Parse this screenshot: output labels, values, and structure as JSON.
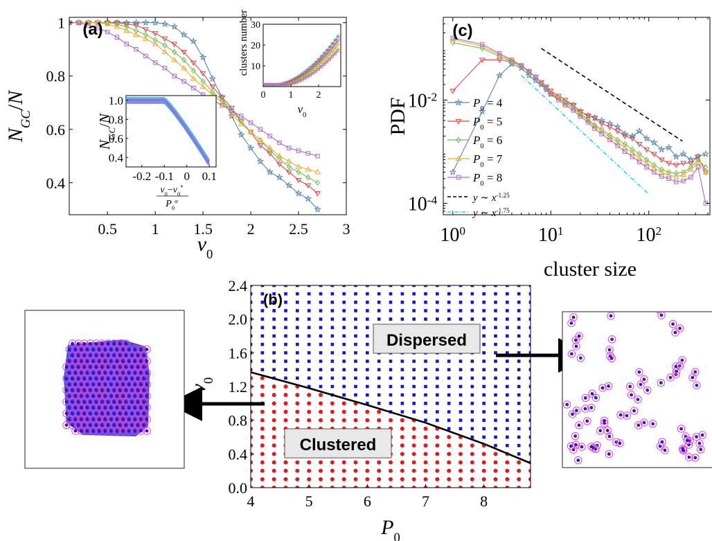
{
  "chart_data": [
    {
      "panel": "(a)",
      "type": "line",
      "xlabel": "v0",
      "ylabel": "NGC/N",
      "xlim": [
        0.1,
        3.0
      ],
      "ylim": [
        0.28,
        1.02
      ],
      "xticks": [
        "0.5",
        "1",
        "1.5",
        "2",
        "2.5",
        "3"
      ],
      "yticks": [
        "0.4",
        "0.6",
        "0.8",
        "1"
      ],
      "series": [
        {
          "name": "P0 = 4",
          "color": "#5a86ad",
          "marker": "star",
          "x": [
            0.1,
            0.2,
            0.3,
            0.4,
            0.5,
            0.6,
            0.7,
            0.8,
            0.9,
            1.0,
            1.1,
            1.2,
            1.3,
            1.4,
            1.5,
            1.6,
            1.7,
            1.8,
            1.9,
            2.0,
            2.1,
            2.2,
            2.3,
            2.4,
            2.5,
            2.6,
            2.7
          ],
          "y": [
            1,
            1,
            1,
            1,
            1,
            1,
            1,
            1,
            1,
            1,
            0.995,
            0.985,
            0.955,
            0.93,
            0.87,
            0.79,
            0.72,
            0.65,
            0.58,
            0.53,
            0.48,
            0.44,
            0.42,
            0.39,
            0.36,
            0.34,
            0.3
          ]
        },
        {
          "name": "P0 = 5",
          "color": "#d94a4a",
          "marker": "triangle-down",
          "x": [
            0.1,
            0.2,
            0.3,
            0.4,
            0.5,
            0.6,
            0.7,
            0.8,
            0.9,
            1.0,
            1.1,
            1.2,
            1.3,
            1.4,
            1.5,
            1.6,
            1.7,
            1.8,
            1.9,
            2.0,
            2.1,
            2.2,
            2.3,
            2.4,
            2.5,
            2.6,
            2.7
          ],
          "y": [
            1,
            1,
            1,
            1,
            1,
            1,
            0.995,
            0.99,
            0.975,
            0.96,
            0.94,
            0.92,
            0.89,
            0.85,
            0.81,
            0.76,
            0.72,
            0.68,
            0.63,
            0.59,
            0.54,
            0.51,
            0.47,
            0.44,
            0.41,
            0.39,
            0.36
          ]
        },
        {
          "name": "P0 = 6",
          "color": "#6cbf4f",
          "marker": "diamond",
          "x": [
            0.1,
            0.2,
            0.3,
            0.4,
            0.5,
            0.6,
            0.7,
            0.8,
            0.9,
            1.0,
            1.1,
            1.2,
            1.3,
            1.4,
            1.5,
            1.6,
            1.7,
            1.8,
            1.9,
            2.0,
            2.1,
            2.2,
            2.3,
            2.4,
            2.5,
            2.6,
            2.7
          ],
          "y": [
            1,
            1,
            1,
            1,
            1,
            0.995,
            0.985,
            0.97,
            0.955,
            0.935,
            0.915,
            0.89,
            0.86,
            0.82,
            0.78,
            0.74,
            0.71,
            0.67,
            0.63,
            0.59,
            0.56,
            0.52,
            0.49,
            0.46,
            0.44,
            0.42,
            0.4
          ]
        },
        {
          "name": "P0 = 7",
          "color": "#f0a830",
          "marker": "triangle-up",
          "x": [
            0.1,
            0.2,
            0.3,
            0.4,
            0.5,
            0.6,
            0.7,
            0.8,
            0.9,
            1.0,
            1.1,
            1.2,
            1.3,
            1.4,
            1.5,
            1.6,
            1.7,
            1.8,
            1.9,
            2.0,
            2.1,
            2.2,
            2.3,
            2.4,
            2.5,
            2.6,
            2.7
          ],
          "y": [
            1,
            1,
            1,
            1,
            0.995,
            0.985,
            0.97,
            0.955,
            0.94,
            0.92,
            0.89,
            0.86,
            0.83,
            0.79,
            0.76,
            0.73,
            0.7,
            0.66,
            0.62,
            0.59,
            0.56,
            0.53,
            0.5,
            0.48,
            0.46,
            0.45,
            0.44
          ]
        },
        {
          "name": "P0 = 8",
          "color": "#a66cc7",
          "marker": "square",
          "x": [
            0.1,
            0.2,
            0.3,
            0.4,
            0.5,
            0.6,
            0.7,
            0.8,
            0.9,
            1.0,
            1.1,
            1.2,
            1.3,
            1.4,
            1.5,
            1.6,
            1.7,
            1.8,
            1.9,
            2.0,
            2.1,
            2.2,
            2.3,
            2.4,
            2.5,
            2.6,
            2.7
          ],
          "y": [
            1,
            1,
            0.99,
            0.98,
            0.965,
            0.945,
            0.92,
            0.9,
            0.875,
            0.85,
            0.83,
            0.8,
            0.78,
            0.755,
            0.73,
            0.71,
            0.69,
            0.67,
            0.65,
            0.625,
            0.6,
            0.575,
            0.55,
            0.53,
            0.52,
            0.51,
            0.5
          ]
        }
      ],
      "insets": [
        {
          "type": "line",
          "xlabel": "v0",
          "ylabel": "clusters number",
          "xlim": [
            0,
            2.8
          ],
          "ylim": [
            0,
            30
          ],
          "xticks": [
            "0",
            "1",
            "2"
          ],
          "yticks": [
            "10",
            "20",
            "30"
          ]
        },
        {
          "type": "line",
          "xlabel": "(v0-v0*)/P0^α",
          "ylabel": "NGC/N",
          "xlim": [
            -0.27,
            0.13
          ],
          "ylim": [
            0.3,
            1.05
          ],
          "xticks": [
            "-0.2",
            "-0.1",
            "0",
            "0.1"
          ],
          "yticks": [
            "0.4",
            "0.6",
            "0.8",
            "1.0"
          ],
          "colors": [
            "#2b7bd9",
            "#44c4e4",
            "#d046d8",
            "#c044e0",
            "#40b8e0"
          ]
        }
      ]
    },
    {
      "panel": "(c)",
      "type": "line",
      "xlabel": "cluster size",
      "ylabel": "PDF",
      "xscale": "log",
      "yscale": "log",
      "xlim": [
        0.8,
        420
      ],
      "ylim": [
        6e-05,
        0.4
      ],
      "xticks": [
        "10^0",
        "10^1",
        "10^2"
      ],
      "yticks": [
        "10^-4",
        "10^-2"
      ],
      "series": [
        {
          "name": "P0 = 4",
          "color": "#5a86ad",
          "marker": "star",
          "x": [
            1,
            2,
            3,
            4,
            5,
            6,
            7,
            8,
            9,
            10,
            12,
            14,
            17,
            20,
            24,
            28,
            33,
            40,
            48,
            57,
            68,
            80,
            95,
            113,
            135,
            160,
            190,
            225,
            268,
            318,
            380
          ],
          "y": [
            0.0004,
            0.006,
            0.03,
            0.05,
            0.042,
            0.03,
            0.024,
            0.02,
            0.016,
            0.013,
            0.011,
            0.009,
            0.008,
            0.006,
            0.005,
            0.0045,
            0.004,
            0.0035,
            0.003,
            0.0022,
            0.002,
            0.0025,
            0.0018,
            0.0015,
            0.0011,
            0.0012,
            0.0008,
            0.0009,
            0.0007,
            0.0008,
            0.0009
          ]
        },
        {
          "name": "P0 = 5",
          "color": "#d94a4a",
          "marker": "triangle-down",
          "x": [
            1,
            2,
            3,
            4,
            5,
            6,
            7,
            8,
            9,
            10,
            12,
            14,
            17,
            20,
            24,
            28,
            33,
            40,
            48,
            57,
            68,
            80,
            95,
            113,
            135,
            160,
            190,
            225,
            268,
            318,
            380
          ],
          "y": [
            0.015,
            0.06,
            0.06,
            0.055,
            0.045,
            0.035,
            0.028,
            0.022,
            0.018,
            0.015,
            0.012,
            0.01,
            0.008,
            0.006,
            0.005,
            0.0045,
            0.0035,
            0.003,
            0.0025,
            0.002,
            0.0018,
            0.0014,
            0.0011,
            0.0009,
            0.0007,
            0.0006,
            0.00055,
            0.0006,
            0.0006,
            0.0008,
            0.0004
          ]
        },
        {
          "name": "P0 = 6",
          "color": "#6cbf4f",
          "marker": "diamond",
          "x": [
            1,
            2,
            3,
            4,
            5,
            6,
            7,
            8,
            9,
            10,
            12,
            14,
            17,
            20,
            24,
            28,
            33,
            40,
            48,
            57,
            68,
            80,
            95,
            113,
            135,
            160,
            190,
            225,
            268,
            318,
            380
          ],
          "y": [
            0.13,
            0.1,
            0.07,
            0.055,
            0.045,
            0.035,
            0.028,
            0.022,
            0.018,
            0.014,
            0.011,
            0.009,
            0.0072,
            0.0055,
            0.0042,
            0.0033,
            0.0027,
            0.0021,
            0.0017,
            0.0014,
            0.0011,
            0.0009,
            0.0007,
            0.00055,
            0.00045,
            0.0004,
            0.00038,
            0.0004,
            0.0005,
            0.0007,
            0.0005
          ]
        },
        {
          "name": "P0 = 7",
          "color": "#f0a830",
          "marker": "triangle-up",
          "x": [
            1,
            2,
            3,
            4,
            5,
            6,
            7,
            8,
            9,
            10,
            12,
            14,
            17,
            20,
            24,
            28,
            33,
            40,
            48,
            57,
            68,
            80,
            95,
            113,
            135,
            160,
            190,
            225,
            268,
            318,
            380
          ],
          "y": [
            0.15,
            0.11,
            0.075,
            0.058,
            0.046,
            0.036,
            0.028,
            0.022,
            0.017,
            0.014,
            0.011,
            0.0085,
            0.0068,
            0.0052,
            0.004,
            0.0031,
            0.0025,
            0.0019,
            0.0015,
            0.0012,
            0.00095,
            0.00075,
            0.0006,
            0.00048,
            0.0004,
            0.00035,
            0.00033,
            0.00036,
            0.00045,
            0.0006,
            0.0004
          ]
        },
        {
          "name": "P0 = 8",
          "color": "#a66cc7",
          "marker": "square",
          "x": [
            1,
            2,
            3,
            4,
            5,
            6,
            7,
            8,
            9,
            10,
            12,
            14,
            17,
            20,
            24,
            28,
            33,
            40,
            48,
            57,
            68,
            80,
            95,
            113,
            135,
            160,
            190,
            225,
            268,
            318,
            380
          ],
          "y": [
            0.16,
            0.12,
            0.08,
            0.06,
            0.047,
            0.036,
            0.028,
            0.021,
            0.017,
            0.013,
            0.01,
            0.008,
            0.0063,
            0.0048,
            0.0037,
            0.0028,
            0.0022,
            0.0017,
            0.0013,
            0.001,
            0.0008,
            0.00063,
            0.0005,
            0.0004,
            0.00033,
            0.0003,
            0.00026,
            0.00027,
            0.00032,
            0.0005,
            0.0001
          ]
        }
      ],
      "guides": [
        {
          "name": "y ~ x^-1.25",
          "color": "#000000",
          "dash": "dashed",
          "x": [
            8,
            220
          ],
          "y": [
            0.1,
            0.0016
          ]
        },
        {
          "name": "y ~ x^-1.75",
          "color": "#22d4dc",
          "dash": "dashdot",
          "x": [
            5,
            100
          ],
          "y": [
            0.03,
            0.00015
          ]
        }
      ]
    },
    {
      "panel": "(b)",
      "type": "scatter",
      "xlabel": "P0",
      "ylabel": "v0",
      "xlim": [
        4,
        8.8
      ],
      "ylim": [
        0,
        2.4
      ],
      "xticks": [
        "4",
        "5",
        "6",
        "7",
        "8"
      ],
      "yticks": [
        "0.0",
        "0.4",
        "0.8",
        "1.2",
        "1.6",
        "2.0",
        "2.4"
      ],
      "grid_x_step": 0.2,
      "grid_y_step": 0.1,
      "colors": {
        "dispersed": "#1515cc",
        "clustered": "#e01b1b",
        "boundary": "#000000"
      },
      "boundary": {
        "x": [
          4.0,
          5.0,
          6.0,
          7.0,
          8.0,
          8.8
        ],
        "y": [
          1.37,
          1.18,
          0.98,
          0.77,
          0.52,
          0.29
        ]
      },
      "region_labels": [
        "Dispersed",
        "Clustered"
      ]
    }
  ],
  "labels": {
    "panel_a": "(a)",
    "panel_b": "(b)",
    "panel_c": "(c)",
    "dispersed": "Dispersed",
    "clustered": "Clustered"
  }
}
